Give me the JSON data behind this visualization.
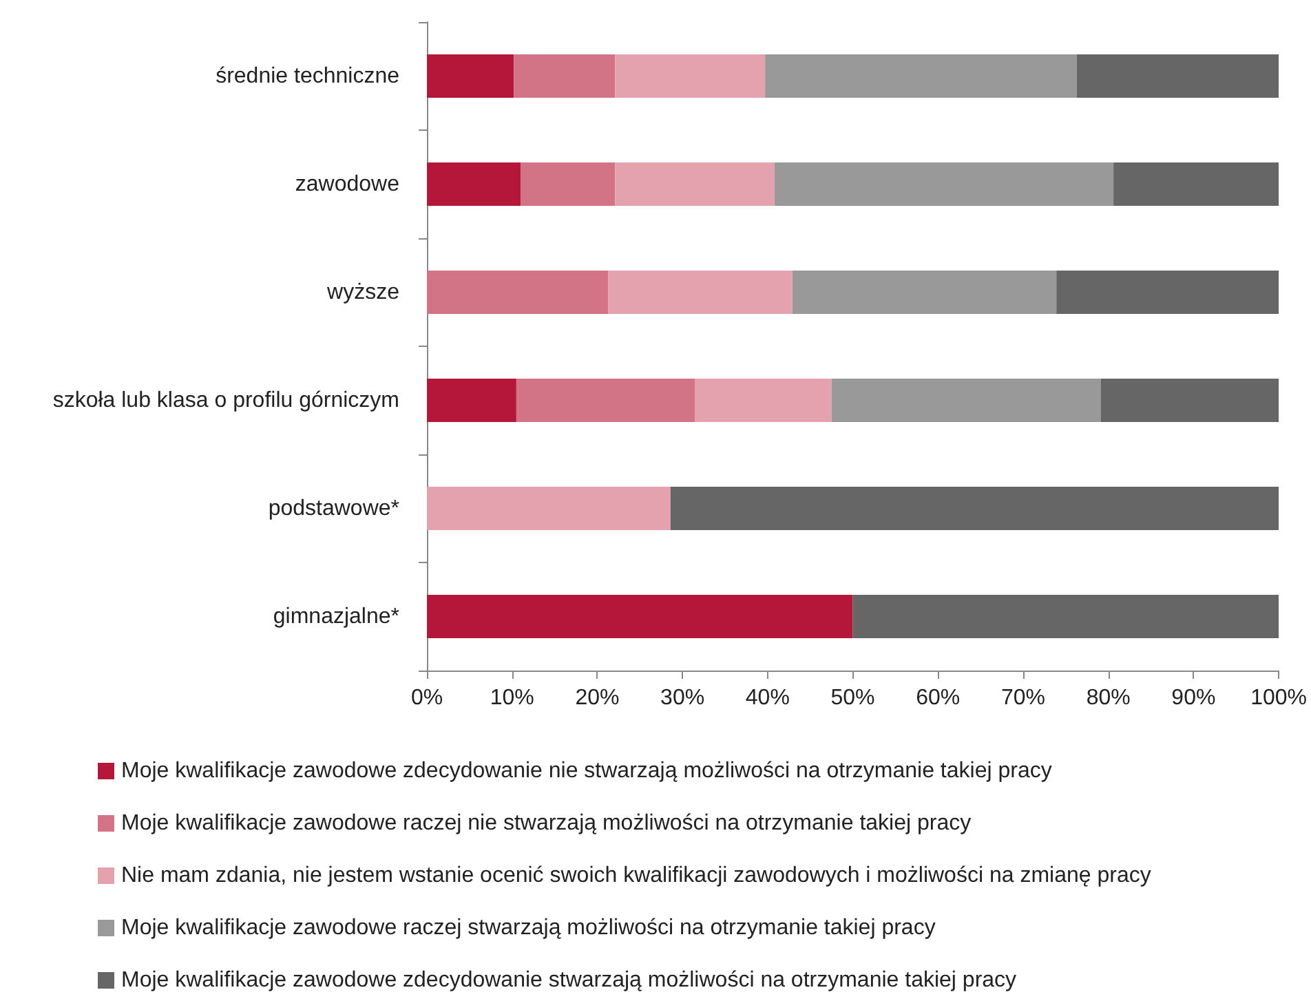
{
  "chart_data": {
    "type": "bar",
    "orientation": "horizontal",
    "stacked": true,
    "grid": false,
    "legend": "bottom",
    "categories": [
      "średnie techniczne",
      "zawodowe",
      "wyższe",
      "szkoła lub klasa o profilu górniczym",
      "podstawowe*",
      "gimnazjalne*"
    ],
    "xlim": [
      0,
      100
    ],
    "xticks": [
      {
        "value": 0,
        "label": "0%"
      },
      {
        "value": 10,
        "label": "10%"
      },
      {
        "value": 20,
        "label": "20%"
      },
      {
        "value": 30,
        "label": "30%"
      },
      {
        "value": 40,
        "label": "40%"
      },
      {
        "value": 50,
        "label": "50%"
      },
      {
        "value": 60,
        "label": "60%"
      },
      {
        "value": 70,
        "label": "70%"
      },
      {
        "value": 80,
        "label": "80%"
      },
      {
        "value": 90,
        "label": "90%"
      },
      {
        "value": 100,
        "label": "100%"
      }
    ],
    "series": [
      {
        "name": "Moje kwalifikacje zawodowe zdecydowanie nie stwarzają możliwości na otrzymanie takiej pracy",
        "color": "#b5173a",
        "values": [
          10.2,
          11.0,
          null,
          10.5,
          null,
          50
        ]
      },
      {
        "name": "Moje kwalifikacje zawodowe raczej nie stwarzają możliwości na otrzymanie takiej pracy",
        "color": "#d37486",
        "values": [
          11.9,
          11.1,
          21.3,
          21.0,
          null,
          null
        ]
      },
      {
        "name": "Nie mam zdania, nie jestem wstanie ocenić swoich kwalifikacji zawodowych i możliwości na zmianę pracy",
        "color": "#e4a2ae",
        "values": [
          17.6,
          18.7,
          21.6,
          16.0,
          28.6,
          null
        ]
      },
      {
        "name": "Moje kwalifikacje zawodowe raczej stwarzają możliwości na otrzymanie takiej pracy",
        "color": "#999999",
        "values": [
          36.6,
          39.8,
          31.0,
          31.6,
          null,
          null
        ]
      },
      {
        "name": "Moje kwalifikacje zawodowe zdecydowanie stwarzają możliwości na otrzymanie takiej pracy",
        "color": "#666666",
        "values": [
          23.7,
          19.4,
          26.1,
          20.9,
          71.4,
          50
        ]
      }
    ]
  }
}
